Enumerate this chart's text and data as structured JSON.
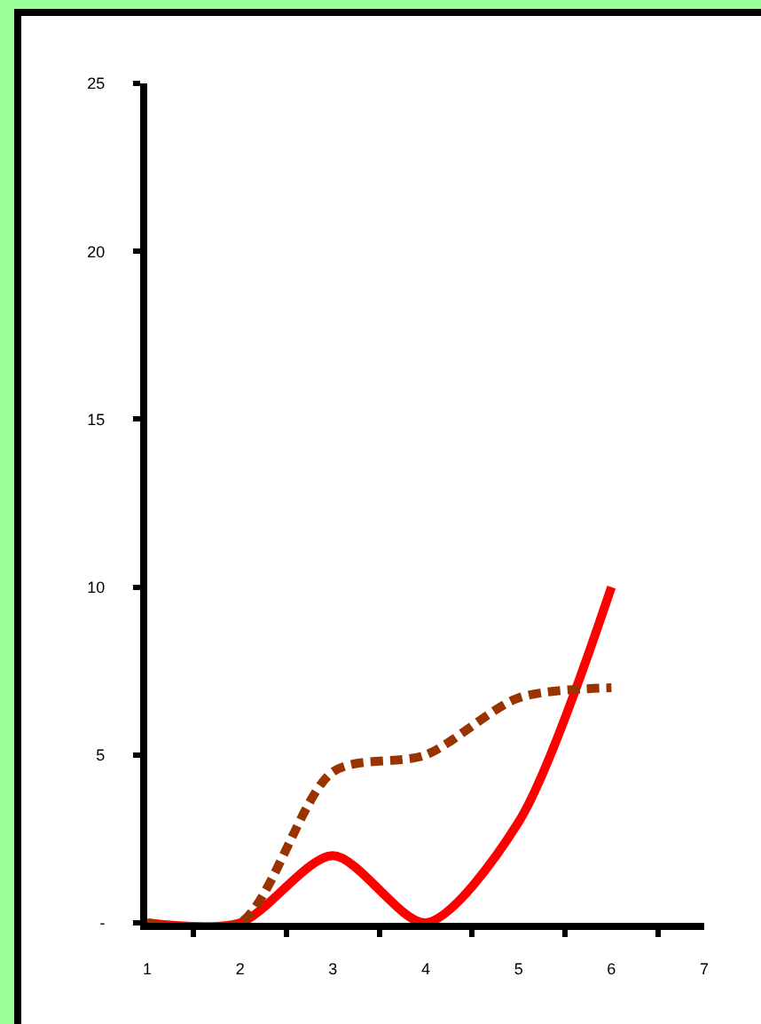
{
  "chart_data": {
    "type": "line",
    "categories": [
      "1",
      "2",
      "3",
      "4",
      "5",
      "6",
      "7"
    ],
    "series": [
      {
        "color": "#ff0000",
        "values": [
          0,
          0,
          2,
          0,
          3,
          10,
          null
        ],
        "line_style": "solid"
      },
      {
        "color": "#993300",
        "values": [
          0,
          0,
          4.5,
          5,
          6.7,
          7,
          null
        ],
        "line_style": "dashed"
      }
    ],
    "ylim": [
      0,
      25
    ],
    "yticks": [
      {
        "value": 0,
        "label": "-"
      },
      5,
      10,
      15,
      20,
      25
    ],
    "marker": "none"
  }
}
